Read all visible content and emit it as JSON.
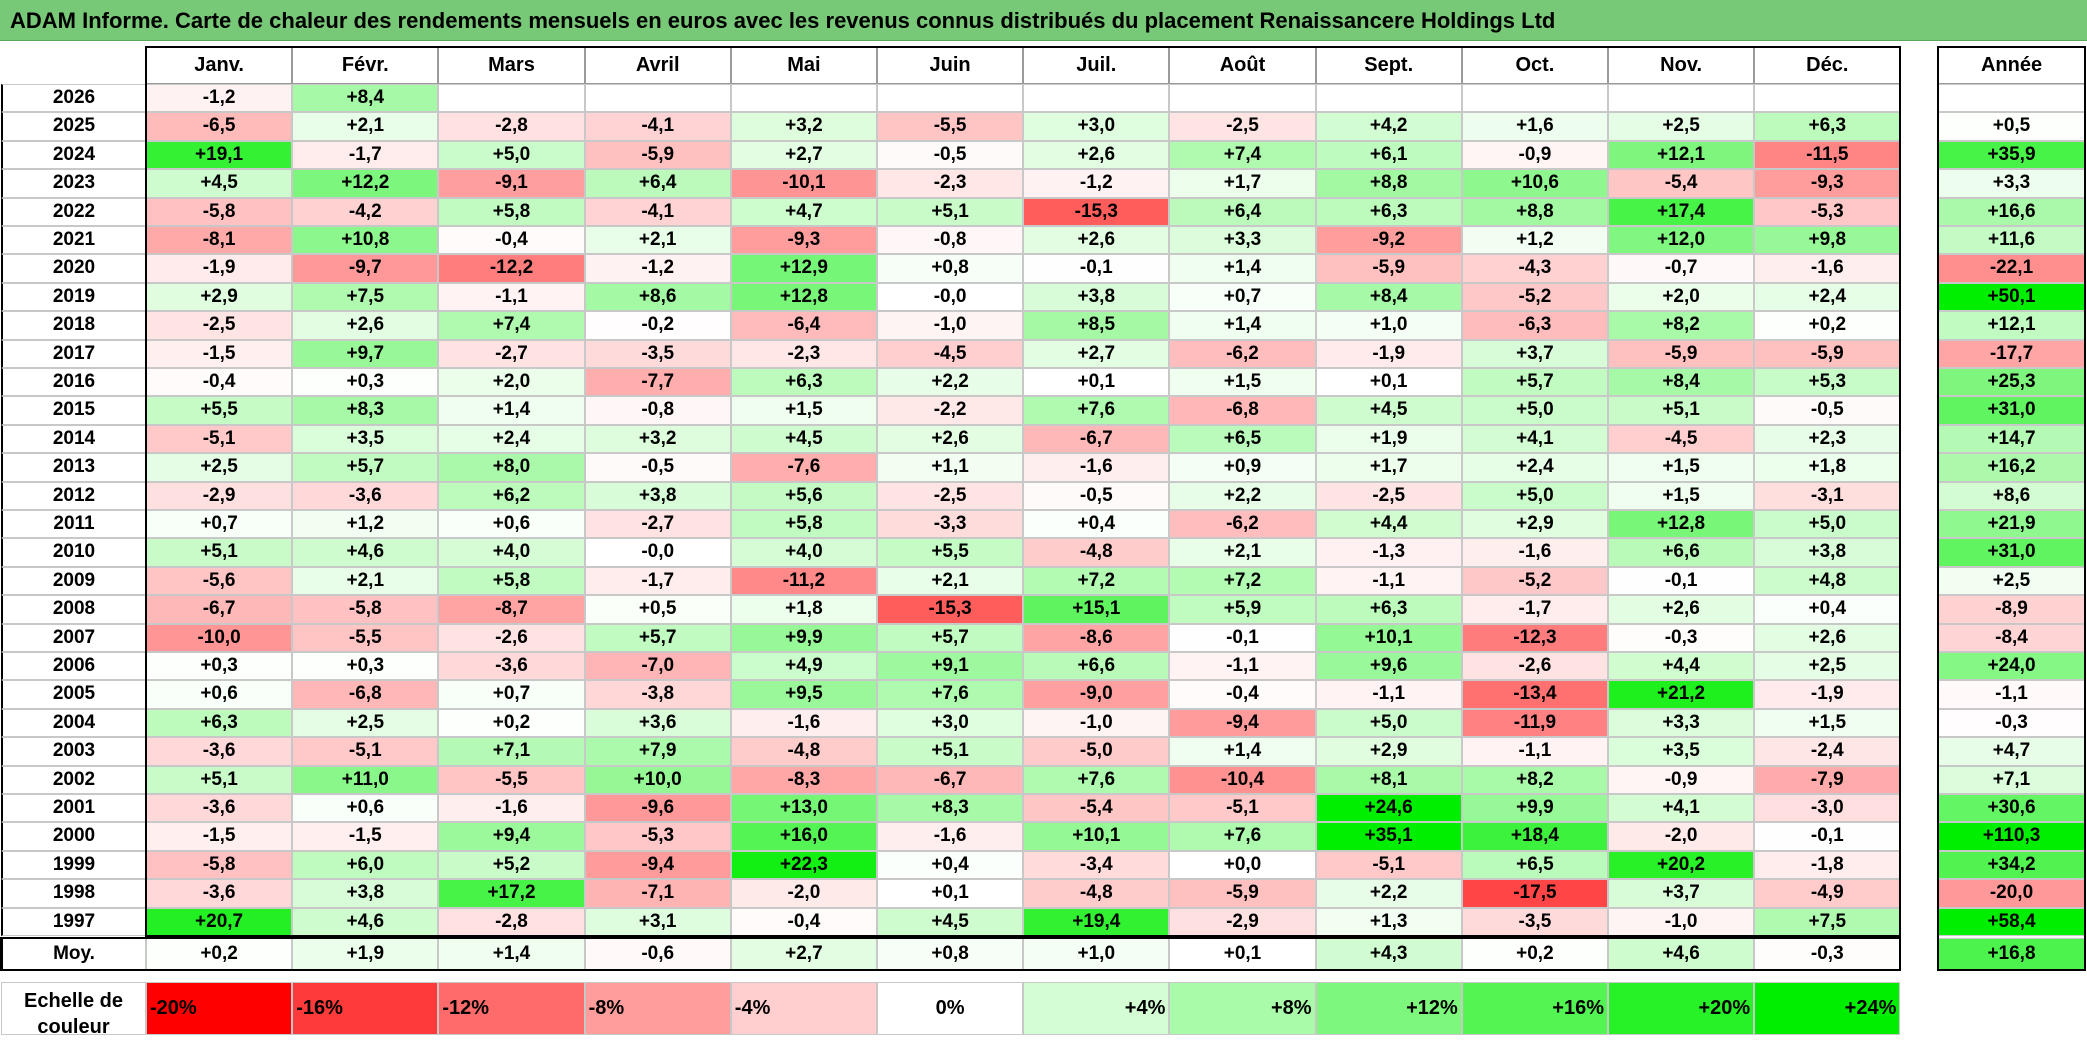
{
  "title": "ADAM Informe. Carte de chaleur des rendements mensuels en euros avec les revenus connus distribués du placement Renaissancere Holdings Ltd",
  "chart_data": {
    "type": "heatmap",
    "months": [
      "Janv.",
      "Févr.",
      "Mars",
      "Avril",
      "Mai",
      "Juin",
      "Juil.",
      "Août",
      "Sept.",
      "Oct.",
      "Nov.",
      "Déc."
    ],
    "year_header": "Année",
    "avg_label": "Moy.",
    "rows": [
      {
        "year": "2026",
        "values": [
          "-1,2",
          "+8,4",
          "",
          "",
          "",
          "",
          "",
          "",
          "",
          "",
          "",
          ""
        ],
        "annual": ""
      },
      {
        "year": "2025",
        "values": [
          "-6,5",
          "+2,1",
          "-2,8",
          "-4,1",
          "+3,2",
          "-5,5",
          "+3,0",
          "-2,5",
          "+4,2",
          "+1,6",
          "+2,5",
          "+6,3"
        ],
        "annual": "+0,5"
      },
      {
        "year": "2024",
        "values": [
          "+19,1",
          "-1,7",
          "+5,0",
          "-5,9",
          "+2,7",
          "-0,5",
          "+2,6",
          "+7,4",
          "+6,1",
          "-0,9",
          "+12,1",
          "-11,5"
        ],
        "annual": "+35,9"
      },
      {
        "year": "2023",
        "values": [
          "+4,5",
          "+12,2",
          "-9,1",
          "+6,4",
          "-10,1",
          "-2,3",
          "-1,2",
          "+1,7",
          "+8,8",
          "+10,6",
          "-5,4",
          "-9,3"
        ],
        "annual": "+3,3"
      },
      {
        "year": "2022",
        "values": [
          "-5,8",
          "-4,2",
          "+5,8",
          "-4,1",
          "+4,7",
          "+5,1",
          "-15,3",
          "+6,4",
          "+6,3",
          "+8,8",
          "+17,4",
          "-5,3"
        ],
        "annual": "+16,6"
      },
      {
        "year": "2021",
        "values": [
          "-8,1",
          "+10,8",
          "-0,4",
          "+2,1",
          "-9,3",
          "-0,8",
          "+2,6",
          "+3,3",
          "-9,2",
          "+1,2",
          "+12,0",
          "+9,8"
        ],
        "annual": "+11,6"
      },
      {
        "year": "2020",
        "values": [
          "-1,9",
          "-9,7",
          "-12,2",
          "-1,2",
          "+12,9",
          "+0,8",
          "-0,1",
          "+1,4",
          "-5,9",
          "-4,3",
          "-0,7",
          "-1,6"
        ],
        "annual": "-22,1"
      },
      {
        "year": "2019",
        "values": [
          "+2,9",
          "+7,5",
          "-1,1",
          "+8,6",
          "+12,8",
          "-0,0",
          "+3,8",
          "+0,7",
          "+8,4",
          "-5,2",
          "+2,0",
          "+2,4"
        ],
        "annual": "+50,1"
      },
      {
        "year": "2018",
        "values": [
          "-2,5",
          "+2,6",
          "+7,4",
          "-0,2",
          "-6,4",
          "-1,0",
          "+8,5",
          "+1,4",
          "+1,0",
          "-6,3",
          "+8,2",
          "+0,2"
        ],
        "annual": "+12,1"
      },
      {
        "year": "2017",
        "values": [
          "-1,5",
          "+9,7",
          "-2,7",
          "-3,5",
          "-2,3",
          "-4,5",
          "+2,7",
          "-6,2",
          "-1,9",
          "+3,7",
          "-5,9",
          "-5,9"
        ],
        "annual": "-17,7"
      },
      {
        "year": "2016",
        "values": [
          "-0,4",
          "+0,3",
          "+2,0",
          "-7,7",
          "+6,3",
          "+2,2",
          "+0,1",
          "+1,5",
          "+0,1",
          "+5,7",
          "+8,4",
          "+5,3"
        ],
        "annual": "+25,3"
      },
      {
        "year": "2015",
        "values": [
          "+5,5",
          "+8,3",
          "+1,4",
          "-0,8",
          "+1,5",
          "-2,2",
          "+7,6",
          "-6,8",
          "+4,5",
          "+5,0",
          "+5,1",
          "-0,5"
        ],
        "annual": "+31,0"
      },
      {
        "year": "2014",
        "values": [
          "-5,1",
          "+3,5",
          "+2,4",
          "+3,2",
          "+4,5",
          "+2,6",
          "-6,7",
          "+6,5",
          "+1,9",
          "+4,1",
          "-4,5",
          "+2,3"
        ],
        "annual": "+14,7"
      },
      {
        "year": "2013",
        "values": [
          "+2,5",
          "+5,7",
          "+8,0",
          "-0,5",
          "-7,6",
          "+1,1",
          "-1,6",
          "+0,9",
          "+1,7",
          "+2,4",
          "+1,5",
          "+1,8"
        ],
        "annual": "+16,2"
      },
      {
        "year": "2012",
        "values": [
          "-2,9",
          "-3,6",
          "+6,2",
          "+3,8",
          "+5,6",
          "-2,5",
          "-0,5",
          "+2,2",
          "-2,5",
          "+5,0",
          "+1,5",
          "-3,1"
        ],
        "annual": "+8,6"
      },
      {
        "year": "2011",
        "values": [
          "+0,7",
          "+1,2",
          "+0,6",
          "-2,7",
          "+5,8",
          "-3,3",
          "+0,4",
          "-6,2",
          "+4,4",
          "+2,9",
          "+12,8",
          "+5,0"
        ],
        "annual": "+21,9"
      },
      {
        "year": "2010",
        "values": [
          "+5,1",
          "+4,6",
          "+4,0",
          "-0,0",
          "+4,0",
          "+5,5",
          "-4,8",
          "+2,1",
          "-1,3",
          "-1,6",
          "+6,6",
          "+3,8"
        ],
        "annual": "+31,0"
      },
      {
        "year": "2009",
        "values": [
          "-5,6",
          "+2,1",
          "+5,8",
          "-1,7",
          "-11,2",
          "+2,1",
          "+7,2",
          "+7,2",
          "-1,1",
          "-5,2",
          "-0,1",
          "+4,8"
        ],
        "annual": "+2,5"
      },
      {
        "year": "2008",
        "values": [
          "-6,7",
          "-5,8",
          "-8,7",
          "+0,5",
          "+1,8",
          "-15,3",
          "+15,1",
          "+5,9",
          "+6,3",
          "-1,7",
          "+2,6",
          "+0,4"
        ],
        "annual": "-8,9"
      },
      {
        "year": "2007",
        "values": [
          "-10,0",
          "-5,5",
          "-2,6",
          "+5,7",
          "+9,9",
          "+5,7",
          "-8,6",
          "-0,1",
          "+10,1",
          "-12,3",
          "-0,3",
          "+2,6"
        ],
        "annual": "-8,4"
      },
      {
        "year": "2006",
        "values": [
          "+0,3",
          "+0,3",
          "-3,6",
          "-7,0",
          "+4,9",
          "+9,1",
          "+6,6",
          "-1,1",
          "+9,6",
          "-2,6",
          "+4,4",
          "+2,5"
        ],
        "annual": "+24,0"
      },
      {
        "year": "2005",
        "values": [
          "+0,6",
          "-6,8",
          "+0,7",
          "-3,8",
          "+9,5",
          "+7,6",
          "-9,0",
          "-0,4",
          "-1,1",
          "-13,4",
          "+21,2",
          "-1,9"
        ],
        "annual": "-1,1"
      },
      {
        "year": "2004",
        "values": [
          "+6,3",
          "+2,5",
          "+0,2",
          "+3,6",
          "-1,6",
          "+3,0",
          "-1,0",
          "-9,4",
          "+5,0",
          "-11,9",
          "+3,3",
          "+1,5"
        ],
        "annual": "-0,3"
      },
      {
        "year": "2003",
        "values": [
          "-3,6",
          "-5,1",
          "+7,1",
          "+7,9",
          "-4,8",
          "+5,1",
          "-5,0",
          "+1,4",
          "+2,9",
          "-1,1",
          "+3,5",
          "-2,4"
        ],
        "annual": "+4,7"
      },
      {
        "year": "2002",
        "values": [
          "+5,1",
          "+11,0",
          "-5,5",
          "+10,0",
          "-8,3",
          "-6,7",
          "+7,6",
          "-10,4",
          "+8,1",
          "+8,2",
          "-0,9",
          "-7,9"
        ],
        "annual": "+7,1"
      },
      {
        "year": "2001",
        "values": [
          "-3,6",
          "+0,6",
          "-1,6",
          "-9,6",
          "+13,0",
          "+8,3",
          "-5,4",
          "-5,1",
          "+24,6",
          "+9,9",
          "+4,1",
          "-3,0"
        ],
        "annual": "+30,6"
      },
      {
        "year": "2000",
        "values": [
          "-1,5",
          "-1,5",
          "+9,4",
          "-5,3",
          "+16,0",
          "-1,6",
          "+10,1",
          "+7,6",
          "+35,1",
          "+18,4",
          "-2,0",
          "-0,1"
        ],
        "annual": "+110,3"
      },
      {
        "year": "1999",
        "values": [
          "-5,8",
          "+6,0",
          "+5,2",
          "-9,4",
          "+22,3",
          "+0,4",
          "-3,4",
          "+0,0",
          "-5,1",
          "+6,5",
          "+20,2",
          "-1,8"
        ],
        "annual": "+34,2"
      },
      {
        "year": "1998",
        "values": [
          "-3,6",
          "+3,8",
          "+17,2",
          "-7,1",
          "-2,0",
          "+0,1",
          "-4,8",
          "-5,9",
          "+2,2",
          "-17,5",
          "+3,7",
          "-4,9"
        ],
        "annual": "-20,0"
      },
      {
        "year": "1997",
        "values": [
          "+20,7",
          "+4,6",
          "-2,8",
          "+3,1",
          "-0,4",
          "+4,5",
          "+19,4",
          "-2,9",
          "+1,3",
          "-3,5",
          "-1,0",
          "+7,5"
        ],
        "annual": "+58,4"
      }
    ],
    "averages": [
      "+0,2",
      "+1,9",
      "+1,4",
      "-0,6",
      "+2,7",
      "+0,8",
      "+1,0",
      "+0,1",
      "+4,3",
      "+0,2",
      "+4,6",
      "-0,3"
    ],
    "average_annual": "+16,8",
    "legend": {
      "label": "Echelle de couleur",
      "stops": [
        {
          "label": "-20%",
          "value": -20,
          "color": "#ff0000"
        },
        {
          "label": "-16%",
          "value": -16,
          "color": "#ff3a3a"
        },
        {
          "label": "-12%",
          "value": -12,
          "color": "#ff6b6b"
        },
        {
          "label": "-8%",
          "value": -8,
          "color": "#ff9c9c"
        },
        {
          "label": "-4%",
          "value": -4,
          "color": "#ffcece"
        },
        {
          "label": "0%",
          "value": 0,
          "color": "#ffffff"
        },
        {
          "label": "+4%",
          "value": 4,
          "color": "#d4fdd4"
        },
        {
          "label": "+8%",
          "value": 8,
          "color": "#a9faa9"
        },
        {
          "label": "+12%",
          "value": 12,
          "color": "#7df87d"
        },
        {
          "label": "+16%",
          "value": 16,
          "color": "#52f552"
        },
        {
          "label": "+20%",
          "value": 20,
          "color": "#27f227"
        },
        {
          "label": "+24%",
          "value": 24,
          "color": "#00ee00"
        }
      ]
    }
  }
}
